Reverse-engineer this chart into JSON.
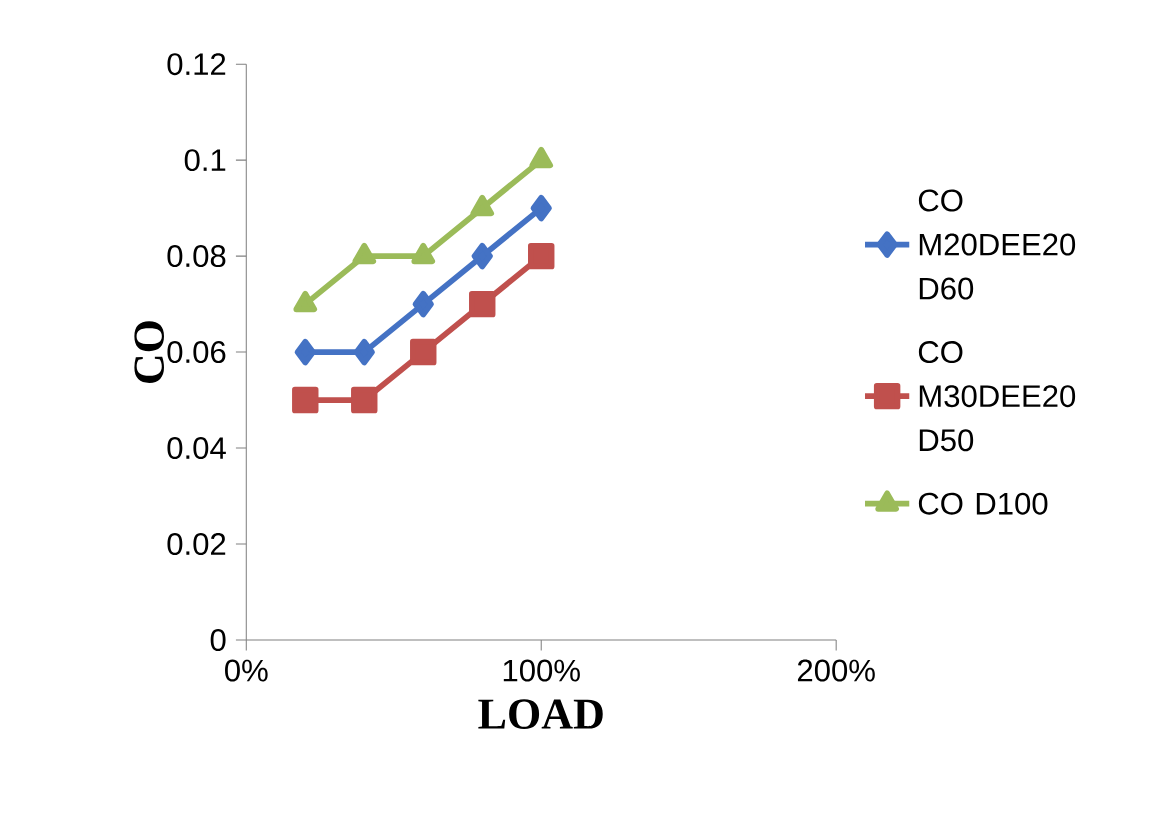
{
  "chart_data": {
    "type": "line",
    "xlabel": "LOAD",
    "ylabel": "CO",
    "x": [
      20,
      40,
      60,
      80,
      100
    ],
    "series": [
      {
        "name": "CO M20DEE20 D60",
        "color": "#4472c4",
        "marker": "diamond",
        "values": [
          0.06,
          0.06,
          0.07,
          0.08,
          0.09
        ]
      },
      {
        "name": "CO M30DEE20 D50",
        "color": "#c0504d",
        "marker": "square",
        "values": [
          0.05,
          0.05,
          0.06,
          0.07,
          0.08
        ]
      },
      {
        "name": "CO D100",
        "color": "#9bbb59",
        "marker": "triangle",
        "values": [
          0.07,
          0.08,
          0.08,
          0.09,
          0.1
        ]
      }
    ],
    "xlim": [
      0,
      200
    ],
    "xticks": [
      {
        "value": 0,
        "label": "0%"
      },
      {
        "value": 100,
        "label": "100%"
      },
      {
        "value": 200,
        "label": "200%"
      }
    ],
    "ylim": [
      0,
      0.12
    ],
    "yticks": [
      0,
      0.02,
      0.04,
      0.06,
      0.08,
      0.1,
      0.12
    ],
    "legend": "right",
    "grid": false
  }
}
